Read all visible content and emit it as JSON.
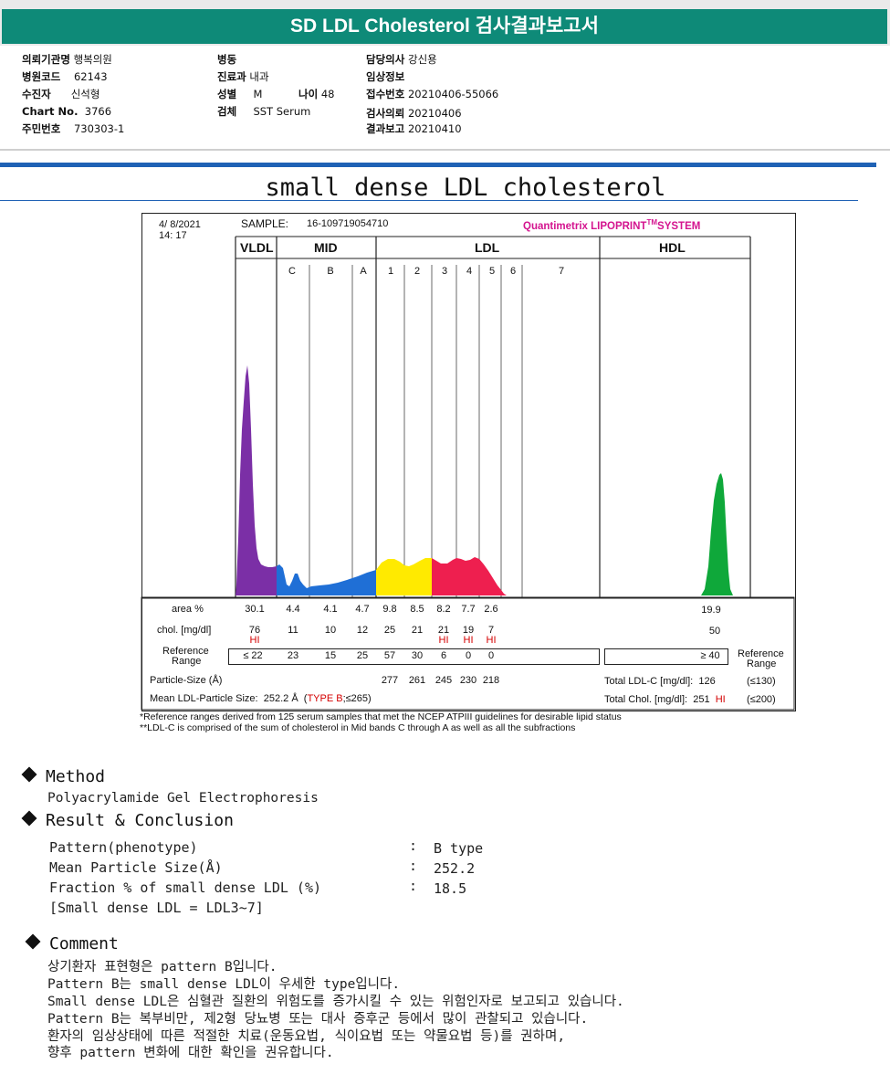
{
  "header": {
    "title": "SD LDL Cholesterol 검사결과보고서",
    "fields": [
      {
        "label": "의뢰기관명",
        "value": "행복의원"
      },
      {
        "label": "병원코드",
        "value": "62143"
      },
      {
        "label": "수진자",
        "value": "신석형"
      },
      {
        "label": "Chart No.",
        "value": "3766"
      },
      {
        "label": "주민번호",
        "value": "730303-1"
      },
      {
        "label": "병동",
        "value": ""
      },
      {
        "label": "진료과",
        "value": "내과"
      },
      {
        "label": "성별",
        "value": "M"
      },
      {
        "label": "나이",
        "value": "48"
      },
      {
        "label": "검체",
        "value": "SST Serum"
      },
      {
        "label": "담당의사",
        "value": "강신용"
      },
      {
        "label": "임상정보",
        "value": ""
      },
      {
        "label": "접수번호",
        "value": "20210406-55066"
      },
      {
        "label": "검사의뢰",
        "value": "20210406"
      },
      {
        "label": "결과보고",
        "value": "20210410"
      }
    ]
  },
  "graph": {
    "title": "small dense LDL cholesterol",
    "date": "4/  8/2021",
    "time": "14: 17",
    "sample_label": "SAMPLE:",
    "sample_id": "16-109719054710",
    "system_name": "Quantimetrix LIPOPRINT",
    "system_tm": "TM",
    "system_suffix": "SYSTEM",
    "groups": {
      "vldl": "VLDL",
      "mid": "MID",
      "ldl": "LDL",
      "hdl": "HDL"
    },
    "bands": [
      "C",
      "B",
      "A",
      "1",
      "2",
      "3",
      "4",
      "5",
      "6",
      "7"
    ]
  },
  "chart_data": {
    "type": "area",
    "title": "small dense LDL cholesterol",
    "fractions": [
      "VLDL",
      "MID-C",
      "MID-B",
      "MID-A",
      "LDL1",
      "LDL2",
      "LDL3",
      "LDL4",
      "LDL5",
      "HDL"
    ],
    "area_percent": [
      30.1,
      4.4,
      4.1,
      4.7,
      9.8,
      8.5,
      8.2,
      7.7,
      2.6,
      19.9
    ],
    "chol_mg_dl": [
      76,
      11,
      10,
      12,
      25,
      21,
      21,
      19,
      7,
      50
    ],
    "reference_range": [
      "≤ 22",
      "23",
      "15",
      "25",
      "57",
      "30",
      "6",
      "0",
      "0",
      "≥ 40"
    ],
    "particle_size_A": {
      "LDL1": 277,
      "LDL2": 261,
      "LDL3": 245,
      "LDL4": 230,
      "LDL5": 218
    },
    "colors": {
      "vldl": "#7b2fa6",
      "mid": "#1f6fd6",
      "ldl1": "#ffea00",
      "ldl2": "#ffe300",
      "ldl3": "#ee1f4f",
      "ldl4": "#ee1f4f",
      "ldl5": "#ee1f4f",
      "hdl": "#0fa83a"
    }
  },
  "table": {
    "row_area_label": "area %",
    "row_chol_label": "chol. [mg/dl]",
    "row_ref_label1": "Reference",
    "row_ref_label2": "Range",
    "row_ref_label_right1": "Reference",
    "row_ref_label_right2": "Range",
    "row_size_label": "Particle-Size (Å)",
    "hi_flag": "HI",
    "mean_label": "Mean LDL-Particle Size:",
    "mean_value": "252.2 Å",
    "mean_type_open": "(",
    "mean_type": "TYPE B",
    "mean_type_range": ";≤265)",
    "total_ldl_label": "Total LDL-C [mg/dl]:",
    "total_ldl_value": "126",
    "total_ldl_ref": "(≤130)",
    "total_chol_label": "Total Chol. [mg/dl]:",
    "total_chol_value": "251",
    "total_chol_flag": "HI",
    "total_chol_ref": "(≤200)"
  },
  "footnotes": [
    "*Reference ranges derived from 125 serum samples that met the NCEP ATPIII guidelines for desirable lipid status",
    "**LDL-C is comprised of the sum of cholesterol in Mid bands C through A as well as all the subfractions"
  ],
  "method": {
    "title": "Method",
    "text": "Polyacrylamide Gel Electrophoresis"
  },
  "result": {
    "title": "Result & Conclusion",
    "rows": [
      {
        "label": "Pattern(phenotype)",
        "value": "B type"
      },
      {
        "label": "Mean Particle Size(Å)",
        "value": "252.2"
      },
      {
        "label": "Fraction % of small dense LDL (%)",
        "value": "18.5"
      }
    ],
    "note": "[Small dense LDL = LDL3~7]"
  },
  "comment": {
    "title": "Comment",
    "lines": [
      "상기환자 표현형은 pattern B입니다.",
      "Pattern B는 small dense LDL이 우세한 type입니다.",
      "Small dense LDL은 심혈관 질환의 위험도를 증가시킬 수 있는 위험인자로 보고되고 있습니다.",
      "Pattern B는 복부비만, 제2형 당뇨병 또는 대사 증후군 등에서 많이 관찰되고 있습니다.",
      "환자의 임상상태에 따른 적절한 치료(운동요법, 식이요법 또는 약물요법 등)를 권하며,",
      "향후 pattern 변화에 대한 확인을 권유합니다."
    ]
  }
}
